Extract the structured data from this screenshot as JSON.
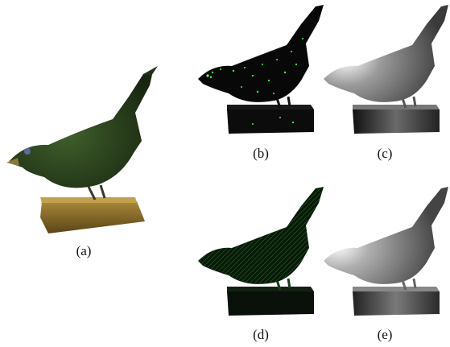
{
  "figure": {
    "panels": [
      {
        "id": "a",
        "caption": "(a)",
        "variant": "color-photo"
      },
      {
        "id": "b",
        "caption": "(b)",
        "variant": "sparse-green-points"
      },
      {
        "id": "c",
        "caption": "(c)",
        "variant": "grayscale-shading"
      },
      {
        "id": "d",
        "caption": "(d)",
        "variant": "dense-green-texture"
      },
      {
        "id": "e",
        "caption": "(e)",
        "variant": "grayscale-shading"
      }
    ]
  },
  "colors": {
    "background": "#ffffff",
    "bird_photo_body": "#2e4a22",
    "base_wood": "#8a6a2a",
    "render_dark": "#0a0a0a",
    "highlight_green": "#3aff3a"
  }
}
